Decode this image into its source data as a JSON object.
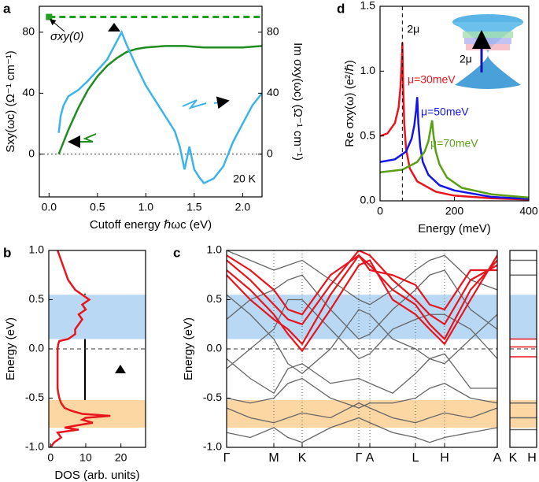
{
  "chart_data": [
    {
      "type": "line",
      "panel": "a",
      "xlabel": "Cutoff energy ℏωc (eV)",
      "ylabel": "Sxy(ωc) (Ω⁻¹ cm⁻¹)",
      "y2label": "Im σxy(ωc) (Ω⁻¹ cm⁻¹)",
      "xlim": [
        -0.1,
        2.2
      ],
      "ylim": [
        -28,
        97
      ],
      "y2lim": [
        -28,
        97
      ],
      "xticks": [
        {
          "value": 0,
          "label": "0.0"
        },
        {
          "value": 0.5,
          "label": "0.5"
        },
        {
          "value": 1,
          "label": "1.0"
        },
        {
          "value": 1.5,
          "label": "1.5"
        },
        {
          "value": 2,
          "label": "2.0"
        }
      ],
      "yticks": [
        0,
        40,
        80
      ],
      "y2ticks": [
        0,
        40,
        80
      ],
      "reference": {
        "label": "σxy(0)",
        "value": 90,
        "color": "#22a022"
      },
      "annotation": "20 K",
      "series": [
        {
          "color": "#1e8c1e",
          "x": [
            0.1,
            0.2,
            0.3,
            0.4,
            0.5,
            0.6,
            0.7,
            0.8,
            0.9,
            1.0,
            1.2,
            1.4,
            1.6,
            1.8,
            2.0,
            2.2
          ],
          "values": [
            0,
            16,
            30,
            42,
            51,
            58,
            63,
            67,
            69,
            70,
            71,
            71,
            70,
            70,
            70,
            71
          ]
        },
        {
          "color": "#3cb4eb",
          "axis": "y2",
          "x": [
            0.1,
            0.12,
            0.15,
            0.2,
            0.3,
            0.4,
            0.5,
            0.6,
            0.7,
            0.75,
            0.8,
            0.9,
            1.0,
            1.1,
            1.2,
            1.3,
            1.35,
            1.4,
            1.45,
            1.5,
            1.55,
            1.6,
            1.7,
            1.8,
            1.85,
            1.9,
            2.0,
            2.1,
            2.2
          ],
          "values": [
            14,
            25,
            32,
            38,
            42,
            48,
            55,
            62,
            74,
            80,
            72,
            58,
            45,
            35,
            25,
            15,
            5,
            -10,
            5,
            -10,
            -15,
            -19,
            -16,
            -8,
            0,
            8,
            20,
            32,
            40
          ]
        }
      ]
    },
    {
      "type": "line",
      "panel": "b",
      "orientation": "horizontal",
      "xlabel": "DOS (arb. units)",
      "ylabel": "Energy (eV)",
      "xlim": [
        -0.5,
        27
      ],
      "ylim": [
        -1,
        1
      ],
      "xticks": [
        0,
        10,
        20
      ],
      "yticks": [
        {
          "value": -1,
          "label": "-1.0"
        },
        {
          "value": -0.5,
          "label": "-0.5"
        },
        {
          "value": 0,
          "label": "0.0"
        },
        {
          "value": 0.5,
          "label": "0.5"
        },
        {
          "value": 1,
          "label": "1.0"
        }
      ],
      "bands": [
        {
          "range": [
            0.1,
            0.55
          ],
          "color": "#b8d8f4"
        },
        {
          "range": [
            -0.8,
            -0.52
          ],
          "color": "#fcd7a4"
        }
      ],
      "series": [
        {
          "color": "#e8141e",
          "x": [
            -1.0,
            -0.95,
            -0.9,
            -0.85,
            -0.82,
            -0.8,
            -0.78,
            -0.75,
            -0.72,
            -0.7,
            -0.68,
            -0.66,
            -0.63,
            -0.6,
            -0.55,
            -0.5,
            -0.45,
            -0.4,
            -0.3,
            -0.2,
            -0.1,
            0.0,
            0.05,
            0.08,
            0.1,
            0.15,
            0.2,
            0.25,
            0.3,
            0.35,
            0.4,
            0.45,
            0.5,
            0.55,
            0.6,
            0.7,
            0.8,
            0.9,
            1.0
          ],
          "values": [
            0,
            1,
            3,
            2,
            8,
            4,
            7,
            12,
            9,
            10,
            17,
            9,
            6,
            4,
            3,
            2.5,
            2.2,
            2,
            2,
            2,
            2,
            2,
            2.2,
            2.5,
            5,
            7,
            7,
            8,
            9,
            8,
            10,
            9,
            11,
            9,
            7,
            5,
            4,
            3,
            2
          ]
        }
      ]
    },
    {
      "type": "bands",
      "panel": "c",
      "ylabel": "Energy (eV)",
      "xlim": [
        0,
        344
      ],
      "ylim": [
        -1,
        1
      ],
      "xticks": [
        {
          "value": 0,
          "label": "Γ"
        },
        {
          "value": 60,
          "label": "M"
        },
        {
          "value": 96,
          "label": "K"
        },
        {
          "value": 168,
          "label": "Γ"
        },
        {
          "value": 182,
          "label": "A"
        },
        {
          "value": 240,
          "label": "L"
        },
        {
          "value": 277,
          "label": "H"
        },
        {
          "value": 344,
          "label": "A"
        }
      ],
      "side_xticks": [
        "K",
        "H"
      ],
      "yticks": [
        {
          "value": -1,
          "label": "-1.0"
        },
        {
          "value": -0.5,
          "label": "-0.5"
        },
        {
          "value": 0,
          "label": "0.0"
        },
        {
          "value": 0.5,
          "label": "0.5"
        },
        {
          "value": 1,
          "label": "1.0"
        }
      ],
      "bands": [
        {
          "range": [
            0.1,
            0.55
          ],
          "color": "#b8d8f4"
        },
        {
          "range": [
            -0.8,
            -0.52
          ],
          "color": "#fcd7a4"
        }
      ],
      "x": [
        0,
        30,
        60,
        78,
        96,
        132,
        168,
        182,
        211,
        240,
        258,
        277,
        310,
        344
      ],
      "series": [
        {
          "color": "#666666",
          "values": [
            0.3,
            0.5,
            0.6,
            0.7,
            0.75,
            0.4,
            0.1,
            0.15,
            0.4,
            0.6,
            0.75,
            0.8,
            0.4,
            0.2
          ]
        },
        {
          "color": "#666666",
          "values": [
            -0.2,
            0.0,
            0.2,
            0.5,
            0.5,
            0.2,
            -0.1,
            -0.05,
            0.2,
            0.3,
            0.35,
            0.35,
            0.2,
            -0.1
          ]
        },
        {
          "color": "#666666",
          "values": [
            -0.5,
            -0.55,
            -0.5,
            -0.35,
            -0.3,
            -0.5,
            -0.6,
            -0.55,
            -0.55,
            -0.5,
            -0.4,
            -0.35,
            -0.5,
            -0.55
          ]
        },
        {
          "color": "#666666",
          "values": [
            -0.6,
            -0.7,
            -0.75,
            -0.7,
            -0.65,
            -0.7,
            -0.55,
            -0.6,
            -0.7,
            -0.75,
            -0.7,
            -0.65,
            -0.7,
            -0.6
          ]
        },
        {
          "color": "#666666",
          "values": [
            -0.85,
            -0.9,
            -0.8,
            -0.9,
            -0.95,
            -0.8,
            -0.7,
            -0.75,
            -0.85,
            -0.9,
            -0.95,
            -0.9,
            -0.85,
            -0.8
          ]
        },
        {
          "color": "#666666",
          "values": [
            1.0,
            0.9,
            0.8,
            0.85,
            0.9,
            0.7,
            0.5,
            0.45,
            0.6,
            0.8,
            0.9,
            0.95,
            0.7,
            0.6
          ]
        },
        {
          "color": "#666666",
          "values": [
            -0.1,
            -0.3,
            -0.45,
            -0.2,
            -0.15,
            -0.35,
            -0.3,
            -0.35,
            -0.45,
            -0.25,
            -0.1,
            -0.05,
            -0.4,
            -0.4
          ]
        },
        {
          "color": "#666666",
          "values": [
            0.55,
            0.35,
            0.1,
            -0.15,
            -0.25,
            0.0,
            0.4,
            0.35,
            0.1,
            0.0,
            -0.1,
            -0.15,
            0.1,
            0.35
          ]
        },
        {
          "color": "#e8141e",
          "values": [
            0.8,
            0.6,
            0.35,
            0.15,
            -0.02,
            0.4,
            0.85,
            0.9,
            0.5,
            0.35,
            0.2,
            0.05,
            0.5,
            0.95
          ]
        },
        {
          "color": "#e8141e",
          "values": [
            0.75,
            0.5,
            0.3,
            0.2,
            0.05,
            0.55,
            0.95,
            0.85,
            0.6,
            0.45,
            0.25,
            0.1,
            0.6,
            0.9
          ]
        },
        {
          "color": "#e8141e",
          "values": [
            0.9,
            0.7,
            0.45,
            0.3,
            0.25,
            0.65,
            1.0,
            0.95,
            0.7,
            0.5,
            0.35,
            0.25,
            0.7,
            0.85
          ]
        },
        {
          "color": "#e8141e",
          "values": [
            0.95,
            0.8,
            0.6,
            0.4,
            0.35,
            0.75,
            0.95,
            0.8,
            0.75,
            0.65,
            0.45,
            0.4,
            0.8,
            0.8
          ]
        }
      ]
    },
    {
      "type": "line",
      "panel": "d",
      "xlabel": "Energy (meV)",
      "ylabel": "Re σxy(ω) (e²/ℏ)",
      "xlim": [
        0,
        400
      ],
      "ylim": [
        0,
        1.5
      ],
      "xticks": [
        0,
        200,
        400
      ],
      "yticks": [
        {
          "value": 0,
          "label": "0.0"
        },
        {
          "value": 0.5,
          "label": "0.5"
        },
        {
          "value": 1,
          "label": "1.0"
        },
        {
          "value": 1.5,
          "label": "1.5"
        }
      ],
      "reference": {
        "label": "2μ",
        "value": 60
      },
      "inset_label": "2μ",
      "series": [
        {
          "name": "μ=30meV",
          "color": "#e8141e",
          "x": [
            0,
            20,
            40,
            50,
            55,
            58,
            60,
            62,
            65,
            70,
            80,
            100,
            150,
            200,
            300,
            400
          ],
          "values": [
            0.5,
            0.52,
            0.6,
            0.72,
            0.88,
            1.05,
            1.22,
            0.9,
            0.6,
            0.4,
            0.25,
            0.15,
            0.07,
            0.04,
            0.02,
            0.01
          ]
        },
        {
          "name": "μ=50meV",
          "color": "#1414e6",
          "x": [
            0,
            40,
            70,
            85,
            92,
            97,
            100,
            103,
            108,
            115,
            130,
            160,
            200,
            300,
            400
          ],
          "values": [
            0.3,
            0.32,
            0.38,
            0.48,
            0.58,
            0.7,
            0.8,
            0.6,
            0.42,
            0.3,
            0.2,
            0.12,
            0.08,
            0.03,
            0.015
          ]
        },
        {
          "name": "μ=70meV",
          "color": "#5aa014",
          "x": [
            0,
            60,
            100,
            120,
            130,
            135,
            140,
            144,
            150,
            160,
            180,
            220,
            300,
            400
          ],
          "values": [
            0.22,
            0.24,
            0.3,
            0.38,
            0.46,
            0.54,
            0.62,
            0.5,
            0.38,
            0.28,
            0.18,
            0.1,
            0.05,
            0.025
          ]
        }
      ]
    }
  ]
}
